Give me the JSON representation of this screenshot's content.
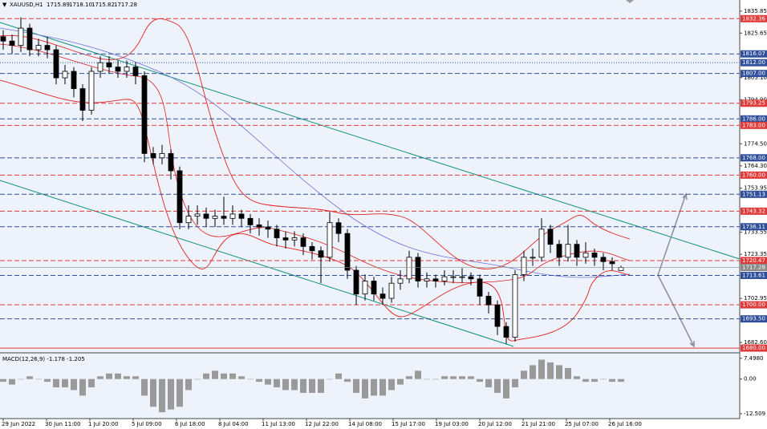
{
  "chart_data": {
    "type": "candlestick",
    "symbol": "XAUUSD,H1",
    "header_values": [
      "1715.89",
      "1718.10",
      "1715.82",
      "1717.28"
    ],
    "ylim": [
      1677.8,
      1841.0
    ],
    "yticks": [
      1835.85,
      1825.65,
      {
        "value": 1805.1,
        "label": "1805.10"
      },
      {
        "value": 1794.9,
        "label": "1794.90"
      },
      {
        "value": 1774.5,
        "label": "1774.50"
      },
      {
        "value": 1764.3,
        "label": "1764.30"
      },
      1753.95,
      1733.55,
      1723.35,
      1702.95,
      {
        "value": 1682.6,
        "label": "1682.60"
      }
    ],
    "x_labels": [
      "29 Jun 2022",
      "30 Jun 11:00",
      "1 Jul 20:00",
      "5 Jul 09:00",
      "6 Jul 18:00",
      "8 Jul 04:00",
      "11 Jul 13:00",
      "12 Jul 22:00",
      "14 Jul 08:00",
      "15 Jul 17:00",
      "19 Jul 03:00",
      "20 Jul 12:00",
      "21 Jul 21:00",
      "25 Jul 07:00",
      "26 Jul 16:00"
    ],
    "ohlc": {
      "open": [
        1824,
        1822,
        1820,
        1828,
        1818,
        1820,
        1818,
        1805,
        1808,
        1800,
        1790,
        1808,
        1812,
        1810,
        1808,
        1810,
        1806,
        1770,
        1768,
        1770,
        1762,
        1738,
        1741,
        1742,
        1740,
        1741,
        1740,
        1742,
        1740,
        1737,
        1736,
        1735,
        1731,
        1730,
        1731,
        1727,
        1725,
        1722,
        1738,
        1733,
        1716,
        1705,
        1711,
        1705,
        1703,
        1710,
        1712,
        1722,
        1711,
        1712,
        1711,
        1713,
        1713,
        1713,
        1712,
        1704,
        1700,
        1690,
        1685,
        1714,
        1722,
        1722,
        1735,
        1728,
        1722,
        1728,
        1722,
        1724,
        1722,
        1720,
        1715.89
      ],
      "high": [
        1827,
        1825,
        1833,
        1830,
        1823,
        1824,
        1820,
        1811,
        1810,
        1802,
        1810,
        1815,
        1815,
        1813,
        1813,
        1812,
        1808,
        1773,
        1774,
        1772,
        1764,
        1746,
        1746,
        1745,
        1744,
        1750,
        1746,
        1744,
        1742,
        1740,
        1739,
        1737,
        1734,
        1734,
        1733,
        1729,
        1727,
        1743,
        1740,
        1735,
        1718,
        1714,
        1713,
        1708,
        1713,
        1716,
        1725,
        1724,
        1715,
        1714,
        1716,
        1716,
        1717,
        1715,
        1714,
        1706,
        1702,
        1692,
        1716,
        1725,
        1726,
        1740,
        1737,
        1730,
        1737,
        1730,
        1729,
        1726,
        1724,
        1722,
        1718.1
      ],
      "low": [
        1818,
        1816,
        1817,
        1815,
        1815,
        1814,
        1802,
        1802,
        1796,
        1785,
        1788,
        1805,
        1807,
        1805,
        1805,
        1802,
        1766,
        1765,
        1765,
        1758,
        1735,
        1735,
        1737,
        1736,
        1736,
        1737,
        1737,
        1736,
        1733,
        1732,
        1731,
        1727,
        1726,
        1727,
        1723,
        1721,
        1710,
        1720,
        1729,
        1712,
        1700,
        1702,
        1702,
        1700,
        1701,
        1707,
        1710,
        1708,
        1708,
        1708,
        1709,
        1710,
        1710,
        1709,
        1700,
        1696,
        1686,
        1682,
        1683,
        1711,
        1718,
        1720,
        1724,
        1718,
        1720,
        1718,
        1719,
        1718,
        1716,
        1716,
        1715.82
      ],
      "close": [
        1822,
        1820,
        1828,
        1818,
        1820,
        1818,
        1805,
        1808,
        1800,
        1790,
        1808,
        1812,
        1810,
        1808,
        1810,
        1806,
        1770,
        1768,
        1770,
        1762,
        1738,
        1741,
        1742,
        1740,
        1741,
        1740,
        1742,
        1740,
        1737,
        1736,
        1735,
        1731,
        1730,
        1731,
        1727,
        1725,
        1722,
        1738,
        1733,
        1716,
        1705,
        1711,
        1705,
        1703,
        1710,
        1712,
        1722,
        1711,
        1712,
        1711,
        1713,
        1713,
        1713,
        1712,
        1704,
        1700,
        1690,
        1685,
        1714,
        1722,
        1722,
        1735,
        1728,
        1722,
        1728,
        1722,
        1724,
        1722,
        1720,
        1719,
        1717.28
      ]
    },
    "levels": {
      "values": [
        1832.36,
        1816.07,
        1812,
        1807,
        1793.25,
        1786,
        1783,
        1768,
        1760,
        1751.13,
        1743.32,
        1736.11,
        1720.47,
        1713.61,
        1700,
        1693.5,
        1680
      ],
      "value_labels": [
        "1832.36",
        "1816.07",
        "1812.00",
        "1807.00",
        "1793.25",
        "1786.00",
        "1783.00",
        "1768.00",
        "1760.00",
        "1751.13",
        "1743.32",
        "1736.11",
        "1720.47",
        "1713.61",
        "1700.00",
        "1693.50",
        "1680.00"
      ],
      "colors": [
        "#e03a3a",
        "#2f4f9a",
        "#2f4f9a",
        "#2f4f9a",
        "#e03a3a",
        "#2f4f9a",
        "#e03a3a",
        "#2f4f9a",
        "#e03a3a",
        "#2f4f9a",
        "#e03a3a",
        "#2f4f9a",
        "#e03a3a",
        "#2f4f9a",
        "#e03a3a",
        "#2f4f9a",
        "#e03a3a"
      ],
      "styles": [
        "dash",
        "dash",
        "dot",
        "dash",
        "dash",
        "dash",
        "dash",
        "dash",
        "dash",
        "dash",
        "dash",
        "dash",
        "dash",
        "dash",
        "dash",
        "dash",
        "solid"
      ]
    },
    "last_price": 1717.28,
    "last_price_color": "#8a8a8a",
    "macd": {
      "label": "MACD(12,26,9) -1.178 -1.205",
      "ylim": [
        -13.7,
        8.6
      ],
      "yticks": [
        {
          "value": 7.498,
          "label": "7.4980"
        },
        {
          "value": 0,
          "label": "0.00"
        },
        -12.509
      ],
      "values": [
        -1,
        -2,
        0,
        1,
        0,
        -1,
        -3,
        -3,
        -4,
        -6,
        -3,
        1,
        2,
        2,
        1,
        1,
        -6,
        -10,
        -12,
        -11,
        -10,
        -4,
        0,
        2,
        3,
        2,
        2,
        1,
        0,
        -1,
        -2,
        -3,
        -4,
        -4,
        -5,
        -5,
        -5,
        0,
        2,
        -1,
        -5,
        -7,
        -6,
        -6,
        -4,
        -2,
        1,
        3,
        0,
        0,
        1,
        1,
        1,
        1,
        -1,
        -3,
        -5,
        -7,
        -3,
        3,
        5,
        7,
        6,
        5,
        4,
        1,
        -1,
        -1,
        0,
        -1,
        -1
      ],
      "color": "#9a9a9a"
    }
  }
}
